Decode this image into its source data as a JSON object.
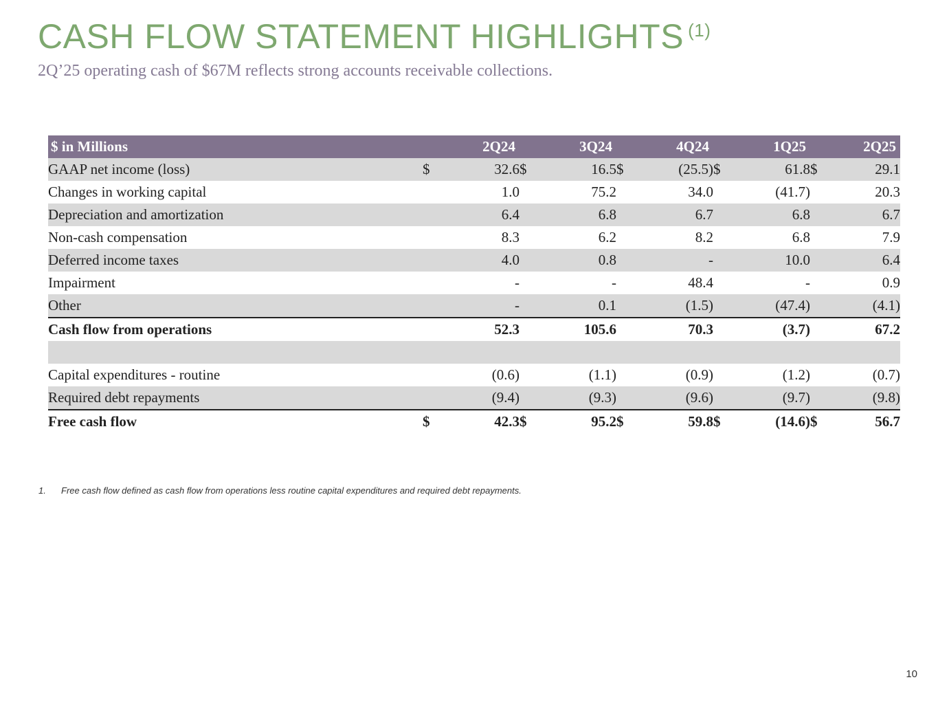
{
  "title": "CASH FLOW STATEMENT HIGHLIGHTS",
  "title_superscript": "(1)",
  "subtitle": "2Q’25 operating cash of $67M reflects strong accounts receivable collections.",
  "table": {
    "header_label": "$ in Millions",
    "columns": [
      "2Q24",
      "3Q24",
      "4Q24",
      "1Q25",
      "2Q25"
    ],
    "rows": [
      {
        "label": "GAAP net income (loss)",
        "cur": [
          "$",
          "$",
          "$",
          "$",
          "$"
        ],
        "values": [
          "32.6",
          "16.5",
          "(25.5)",
          "61.8",
          "29.1"
        ]
      },
      {
        "label": "Changes in working capital",
        "cur": [
          "",
          "",
          "",
          "",
          ""
        ],
        "values": [
          "1.0",
          "75.2",
          "34.0",
          "(41.7)",
          "20.3"
        ]
      },
      {
        "label": "Depreciation and amortization",
        "cur": [
          "",
          "",
          "",
          "",
          ""
        ],
        "values": [
          "6.4",
          "6.8",
          "6.7",
          "6.8",
          "6.7"
        ]
      },
      {
        "label": "Non-cash compensation",
        "cur": [
          "",
          "",
          "",
          "",
          ""
        ],
        "values": [
          "8.3",
          "6.2",
          "8.2",
          "6.8",
          "7.9"
        ]
      },
      {
        "label": "Deferred income taxes",
        "cur": [
          "",
          "",
          "",
          "",
          ""
        ],
        "values": [
          "4.0",
          "0.8",
          "-",
          "10.0",
          "6.4"
        ]
      },
      {
        "label": "Impairment",
        "cur": [
          "",
          "",
          "",
          "",
          ""
        ],
        "values": [
          "-",
          "-",
          "48.4",
          "-",
          "0.9"
        ]
      },
      {
        "label": "Other",
        "cur": [
          "",
          "",
          "",
          "",
          ""
        ],
        "values": [
          "-",
          "0.1",
          "(1.5)",
          "(47.4)",
          "(4.1)"
        ]
      },
      {
        "label": "Cash flow from operations",
        "cur": [
          "",
          "",
          "",
          "",
          ""
        ],
        "values": [
          "52.3",
          "105.6",
          "70.3",
          "(3.7)",
          "67.2"
        ]
      },
      {
        "label": "",
        "cur": [
          "",
          "",
          "",
          "",
          ""
        ],
        "values": [
          "",
          "",
          "",
          "",
          ""
        ]
      },
      {
        "label": "Capital expenditures - routine",
        "cur": [
          "",
          "",
          "",
          "",
          ""
        ],
        "values": [
          "(0.6)",
          "(1.1)",
          "(0.9)",
          "(1.2)",
          "(0.7)"
        ]
      },
      {
        "label": "Required debt repayments",
        "cur": [
          "",
          "",
          "",
          "",
          ""
        ],
        "values": [
          "(9.4)",
          "(9.3)",
          "(9.6)",
          "(9.7)",
          "(9.8)"
        ]
      },
      {
        "label": "Free cash flow",
        "cur": [
          "$",
          "$",
          "$",
          "$",
          "$"
        ],
        "values": [
          "42.3",
          "95.2",
          "59.8",
          "(14.6)",
          "56.7"
        ]
      }
    ]
  },
  "footnote": {
    "number": "1.",
    "text": "Free cash flow defined as cash flow from operations less routine capital expenditures and required debt repayments."
  },
  "page_number": "10",
  "colors": {
    "title": "#7ea86f",
    "subtitle": "#857a94",
    "header_bg": "#81738e",
    "row_shade": "#d9d9d9"
  }
}
